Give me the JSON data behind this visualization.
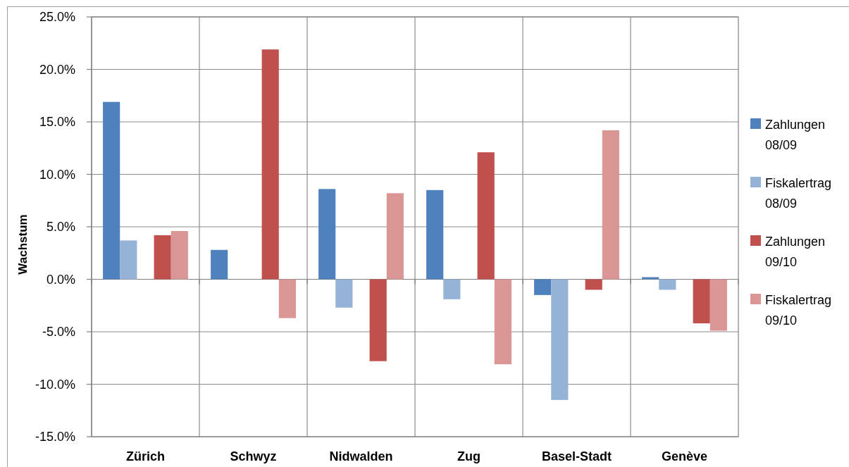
{
  "chart_data": {
    "type": "bar",
    "ylabel": "Wachstum",
    "categories": [
      "Zürich",
      "Schwyz",
      "Nidwalden",
      "Zug",
      "Basel-Stadt",
      "Genève"
    ],
    "series": [
      {
        "name": "Zahlungen 08/09",
        "color": "#4f81bd",
        "values": [
          16.9,
          2.8,
          8.6,
          8.5,
          -1.5,
          0.2
        ]
      },
      {
        "name": "Fiskalertrag 08/09",
        "color": "#95b3d7",
        "values": [
          3.7,
          null,
          -2.7,
          -1.9,
          -11.5,
          -1.0
        ]
      },
      {
        "values": [
          null,
          null,
          null,
          null,
          null,
          null
        ]
      },
      {
        "name": "Zahlungen 09/10",
        "color": "#c0504d",
        "values": [
          4.2,
          21.9,
          -7.8,
          12.1,
          -1.0,
          -4.2
        ]
      },
      {
        "name": "Fiskalertrag 09/10",
        "color": "#d99694",
        "values": [
          4.6,
          -3.7,
          8.2,
          -8.1,
          14.2,
          -4.9
        ]
      }
    ],
    "ylim": [
      -15,
      25
    ],
    "yticks": [
      {
        "value": -15,
        "label": "-15.0%"
      },
      {
        "value": -10,
        "label": "-10.0%"
      },
      {
        "value": -5,
        "label": "-5.0%"
      },
      {
        "value": 0,
        "label": "0.0%"
      },
      {
        "value": 5,
        "label": "5.0%"
      },
      {
        "value": 10,
        "label": "10.0%"
      },
      {
        "value": 15,
        "label": "15.0%"
      },
      {
        "value": 20,
        "label": "20.0%"
      },
      {
        "value": 25,
        "label": "25.0%"
      }
    ],
    "grid": true,
    "legend": "right"
  }
}
